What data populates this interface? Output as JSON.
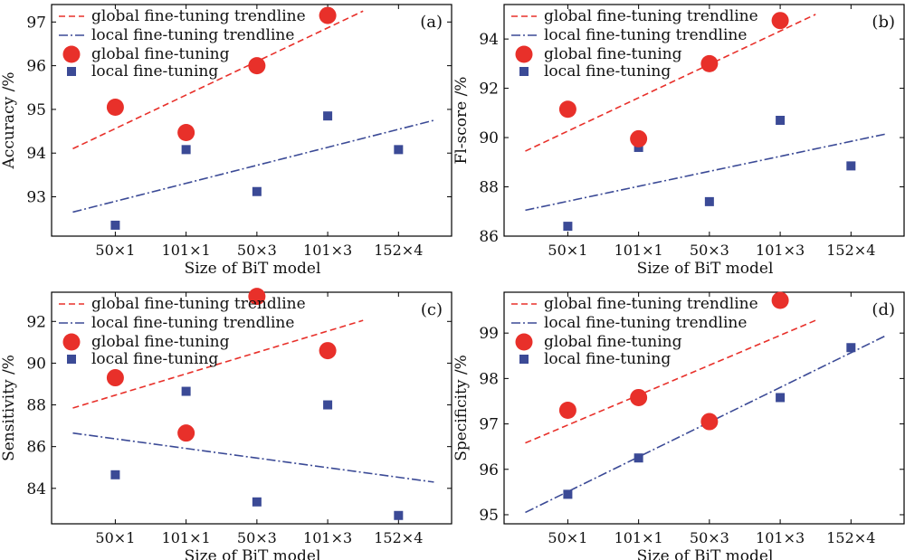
{
  "categories": [
    "50×1",
    "101×1",
    "50×3",
    "101×3",
    "152×4"
  ],
  "legend": {
    "global_trend": "global fine-tuning trendline",
    "local_trend": "local fine-tuning trendline",
    "global_points": "global fine-tuning",
    "local_points": "local fine-tuning"
  },
  "colors": {
    "global": "#e8302a",
    "local": "#3b4a96"
  },
  "chart_data": [
    {
      "type": "scatter",
      "panel_label": "(a)",
      "xlabel": "Size of BiT model",
      "ylabel": "Accuracy /%",
      "ylim": [
        92.1,
        97.4
      ],
      "yticks": [
        93,
        94,
        95,
        96,
        97
      ],
      "x": [
        1,
        2,
        3,
        4,
        5
      ],
      "global_points": [
        95.05,
        94.47,
        96.0,
        97.15
      ],
      "local_points": [
        92.35,
        94.08,
        93.12,
        94.85,
        94.08
      ],
      "global_trend": [
        [
          0.4,
          94.1
        ],
        [
          4.5,
          97.25
        ]
      ],
      "local_trend": [
        [
          0.4,
          92.65
        ],
        [
          5.5,
          94.75
        ]
      ]
    },
    {
      "type": "scatter",
      "panel_label": "(b)",
      "xlabel": "Size of BiT model",
      "ylabel": "Fl-score /%",
      "ylim": [
        86.0,
        95.4
      ],
      "yticks": [
        86,
        88,
        90,
        92,
        94
      ],
      "x": [
        1,
        2,
        3,
        4,
        5
      ],
      "global_points": [
        91.15,
        89.95,
        93.0,
        94.75
      ],
      "local_points": [
        86.4,
        89.6,
        87.4,
        90.7,
        88.85
      ],
      "global_trend": [
        [
          0.4,
          89.45
        ],
        [
          4.5,
          95.0
        ]
      ],
      "local_trend": [
        [
          0.4,
          87.05
        ],
        [
          5.5,
          90.15
        ]
      ]
    },
    {
      "type": "scatter",
      "panel_label": "(c)",
      "xlabel": "Size of BiT model",
      "ylabel": "Sensitivity /%",
      "ylim": [
        82.3,
        93.4
      ],
      "yticks": [
        84,
        86,
        88,
        90,
        92
      ],
      "x": [
        1,
        2,
        3,
        4,
        5
      ],
      "global_points": [
        89.3,
        86.65,
        93.2,
        90.6
      ],
      "local_points": [
        84.65,
        88.65,
        83.35,
        88.0,
        82.7
      ],
      "global_trend": [
        [
          0.4,
          87.85
        ],
        [
          4.5,
          92.05
        ]
      ],
      "local_trend": [
        [
          0.4,
          86.65
        ],
        [
          5.5,
          84.3
        ]
      ]
    },
    {
      "type": "scatter",
      "panel_label": "(d)",
      "xlabel": "Size of BiT model",
      "ylabel": "Specificity /%",
      "ylim": [
        94.8,
        99.9
      ],
      "yticks": [
        95,
        96,
        97,
        98,
        99
      ],
      "x": [
        1,
        2,
        3,
        4,
        5
      ],
      "global_points": [
        97.3,
        97.58,
        97.05,
        99.72
      ],
      "local_points": [
        95.45,
        96.25,
        97.05,
        97.58,
        98.68
      ],
      "global_trend": [
        [
          0.4,
          96.58
        ],
        [
          4.5,
          99.28
        ]
      ],
      "local_trend": [
        [
          0.4,
          95.05
        ],
        [
          5.5,
          98.95
        ]
      ]
    }
  ]
}
